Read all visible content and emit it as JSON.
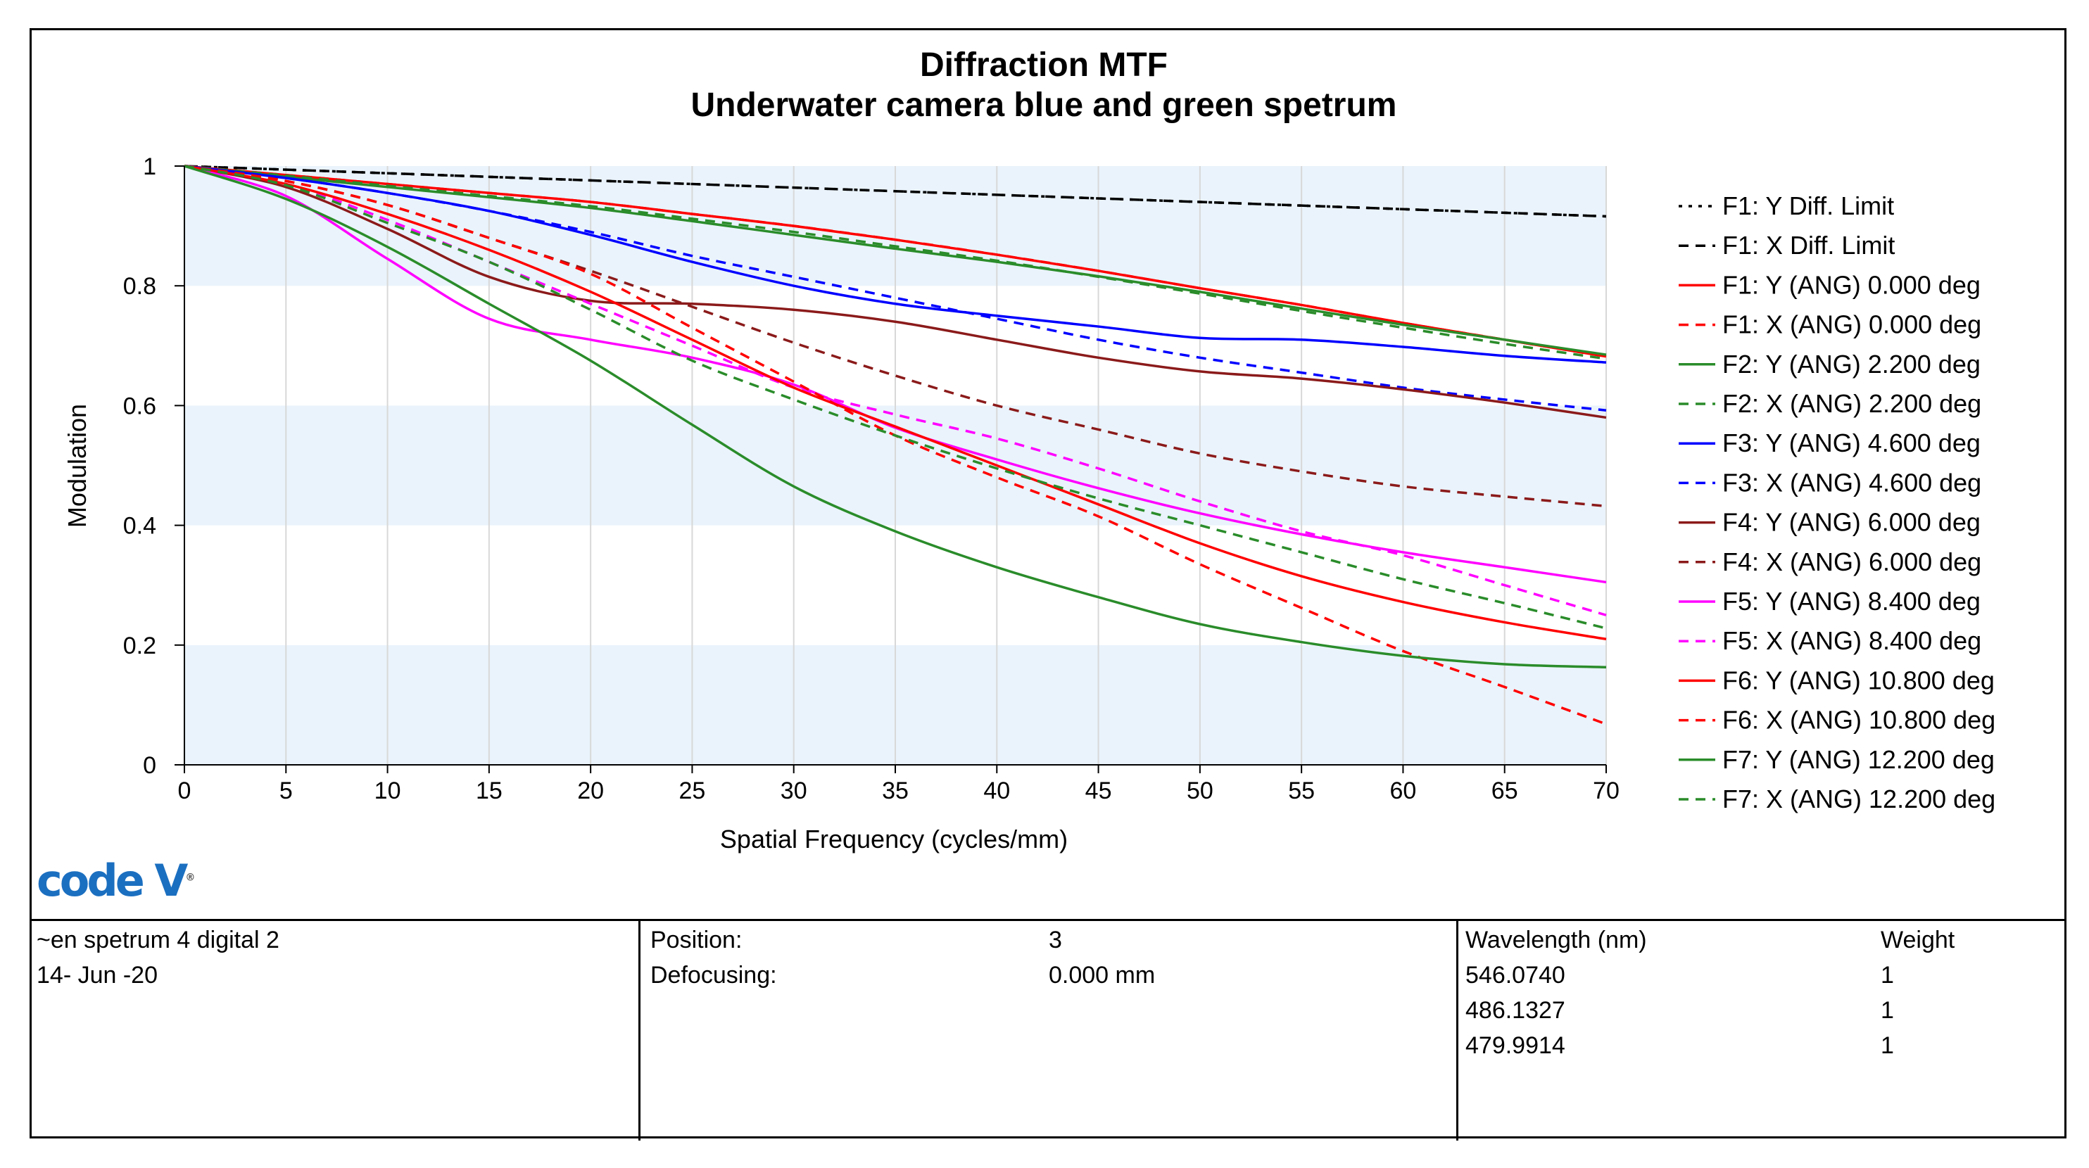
{
  "chart_data": {
    "type": "line",
    "title": "Diffraction MTF",
    "subtitle": "Underwater camera blue and green spetrum",
    "xlabel": "Spatial Frequency (cycles/mm)",
    "ylabel": "Modulation",
    "xlim": [
      0,
      70
    ],
    "ylim": [
      0,
      1
    ],
    "x_ticks": [
      "0",
      "5",
      "10",
      "15",
      "20",
      "25",
      "30",
      "35",
      "40",
      "45",
      "50",
      "55",
      "60",
      "65",
      "70"
    ],
    "y_ticks": [
      "0",
      "0.2",
      "0.4",
      "0.6",
      "0.8",
      "1"
    ],
    "grid": true,
    "legend_position": "right",
    "x": [
      0,
      5,
      10,
      15,
      20,
      25,
      30,
      35,
      40,
      45,
      50,
      55,
      60,
      65,
      70
    ],
    "series": [
      {
        "name": "F1: Y Diff. Limit",
        "color": "#000000",
        "dash": "dot",
        "values": [
          1.0,
          0.994,
          0.988,
          0.982,
          0.976,
          0.97,
          0.964,
          0.958,
          0.952,
          0.946,
          0.94,
          0.934,
          0.928,
          0.922,
          0.916
        ]
      },
      {
        "name": "F1: X Diff. Limit",
        "color": "#000000",
        "dash": "dash",
        "values": [
          1.0,
          0.994,
          0.988,
          0.982,
          0.976,
          0.97,
          0.964,
          0.958,
          0.952,
          0.946,
          0.94,
          0.934,
          0.928,
          0.922,
          0.916
        ]
      },
      {
        "name": "F1: Y (ANG) 0.000 deg",
        "color": "#ff0000",
        "dash": "solid",
        "values": [
          1.0,
          0.985,
          0.97,
          0.955,
          0.94,
          0.92,
          0.9,
          0.877,
          0.852,
          0.825,
          0.796,
          0.768,
          0.738,
          0.71,
          0.682
        ]
      },
      {
        "name": "F1: X (ANG) 0.000 deg",
        "color": "#ff0000",
        "dash": "dash",
        "values": [
          1.0,
          0.985,
          0.97,
          0.955,
          0.94,
          0.92,
          0.9,
          0.877,
          0.852,
          0.825,
          0.796,
          0.768,
          0.738,
          0.71,
          0.682
        ]
      },
      {
        "name": "F2: Y (ANG) 2.200 deg",
        "color": "#2a8c2a",
        "dash": "solid",
        "values": [
          1.0,
          0.982,
          0.965,
          0.948,
          0.93,
          0.908,
          0.885,
          0.862,
          0.84,
          0.816,
          0.79,
          0.762,
          0.735,
          0.71,
          0.685
        ]
      },
      {
        "name": "F2: X (ANG) 2.200 deg",
        "color": "#2a8c2a",
        "dash": "dash",
        "values": [
          1.0,
          0.984,
          0.967,
          0.95,
          0.933,
          0.912,
          0.89,
          0.866,
          0.842,
          0.815,
          0.787,
          0.758,
          0.73,
          0.703,
          0.678
        ]
      },
      {
        "name": "F3: Y (ANG) 4.600 deg",
        "color": "#0000ff",
        "dash": "solid",
        "values": [
          1.0,
          0.98,
          0.955,
          0.925,
          0.885,
          0.84,
          0.8,
          0.77,
          0.75,
          0.732,
          0.713,
          0.71,
          0.698,
          0.683,
          0.672
        ]
      },
      {
        "name": "F3: X (ANG) 4.600 deg",
        "color": "#0000ff",
        "dash": "dash",
        "values": [
          1.0,
          0.98,
          0.955,
          0.925,
          0.89,
          0.85,
          0.815,
          0.78,
          0.745,
          0.71,
          0.68,
          0.655,
          0.63,
          0.61,
          0.592
        ]
      },
      {
        "name": "F4: Y (ANG) 6.000 deg",
        "color": "#8b1a1a",
        "dash": "solid",
        "values": [
          1.0,
          0.965,
          0.895,
          0.815,
          0.775,
          0.77,
          0.76,
          0.74,
          0.71,
          0.68,
          0.657,
          0.645,
          0.627,
          0.605,
          0.58
        ]
      },
      {
        "name": "F4: X (ANG) 6.000 deg",
        "color": "#8b1a1a",
        "dash": "dash",
        "values": [
          1.0,
          0.975,
          0.935,
          0.88,
          0.825,
          0.765,
          0.705,
          0.65,
          0.6,
          0.56,
          0.52,
          0.49,
          0.465,
          0.448,
          0.432
        ]
      },
      {
        "name": "F5: Y (ANG) 8.400 deg",
        "color": "#ff00ff",
        "dash": "solid",
        "values": [
          1.0,
          0.95,
          0.845,
          0.745,
          0.71,
          0.68,
          0.635,
          0.563,
          0.51,
          0.462,
          0.42,
          0.385,
          0.355,
          0.33,
          0.305
        ]
      },
      {
        "name": "F5: X (ANG) 8.400 deg",
        "color": "#ff00ff",
        "dash": "dash",
        "values": [
          1.0,
          0.97,
          0.91,
          0.84,
          0.77,
          0.7,
          0.63,
          0.585,
          0.545,
          0.495,
          0.44,
          0.39,
          0.35,
          0.3,
          0.25
        ]
      },
      {
        "name": "F6: Y (ANG) 10.800 deg",
        "color": "#ff0000",
        "dash": "solid",
        "values": [
          1.0,
          0.97,
          0.92,
          0.86,
          0.79,
          0.71,
          0.63,
          0.565,
          0.5,
          0.435,
          0.37,
          0.315,
          0.272,
          0.238,
          0.21
        ]
      },
      {
        "name": "F6: X (ANG) 10.800 deg",
        "color": "#ff0000",
        "dash": "dash",
        "values": [
          1.0,
          0.975,
          0.935,
          0.88,
          0.82,
          0.73,
          0.64,
          0.55,
          0.48,
          0.415,
          0.335,
          0.262,
          0.19,
          0.13,
          0.068
        ]
      },
      {
        "name": "F7: Y (ANG) 12.200 deg",
        "color": "#2a8c2a",
        "dash": "solid",
        "values": [
          1.0,
          0.945,
          0.865,
          0.77,
          0.675,
          0.568,
          0.465,
          0.39,
          0.33,
          0.28,
          0.235,
          0.205,
          0.182,
          0.168,
          0.163
        ]
      },
      {
        "name": "F7: X (ANG) 12.200 deg",
        "color": "#2a8c2a",
        "dash": "dash",
        "values": [
          1.0,
          0.968,
          0.905,
          0.84,
          0.76,
          0.675,
          0.61,
          0.55,
          0.495,
          0.445,
          0.4,
          0.355,
          0.31,
          0.27,
          0.228
        ]
      }
    ]
  },
  "logo_text": "code V",
  "info": {
    "lens_name": "~en spetrum 4 digital 2",
    "date": "14- Jun -20",
    "position_label": "Position:",
    "position_value": "3",
    "defocus_label": "Defocusing:",
    "defocus_value": "0.000 mm",
    "wavelength_header": "Wavelength (nm)",
    "weight_header": "Weight",
    "wavelengths": [
      {
        "nm": "546.0740",
        "weight": "1"
      },
      {
        "nm": "486.1327",
        "weight": "1"
      },
      {
        "nm": "479.9914",
        "weight": "1"
      }
    ]
  }
}
